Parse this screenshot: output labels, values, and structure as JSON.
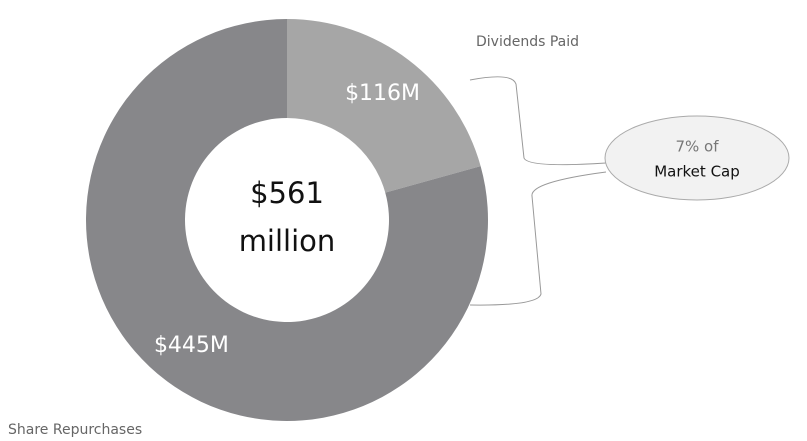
{
  "chart_data": {
    "type": "donut",
    "categories": [
      "Dividends Paid",
      "Share Repurchases"
    ],
    "values": [
      116,
      445
    ],
    "value_labels": [
      "$116M",
      "$445M"
    ],
    "colors": [
      "#a6a6a6",
      "#87878a"
    ],
    "center_label": [
      "$561",
      "million"
    ],
    "annotation": [
      "7% of",
      "Market Cap"
    ]
  }
}
